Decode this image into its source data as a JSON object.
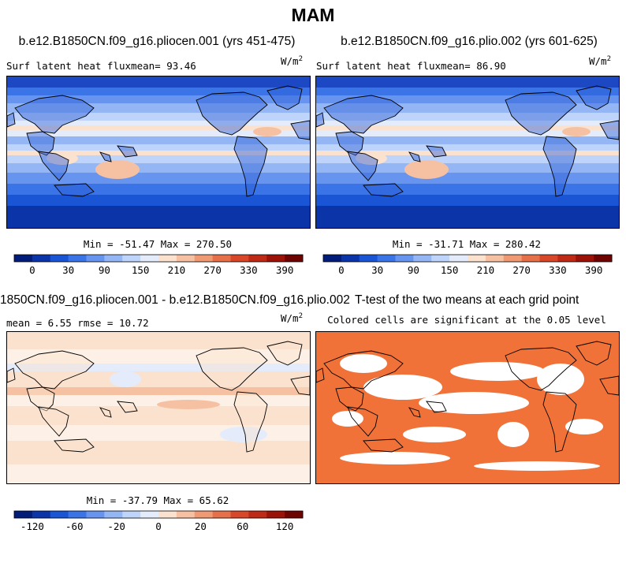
{
  "main_title": "MAM",
  "units_base": "W/m",
  "units_exp": "2",
  "panels": {
    "p1": {
      "title": "b.e12.B1850CN.f09_g16.pliocen.001 (yrs 451-475)",
      "left_text": "Surf latent heat fluxmean=  93.46",
      "minmax": "Min = -51.47 Max = 270.50"
    },
    "p2": {
      "title": "b.e12.B1850CN.f09_g16.plio.002 (yrs 601-625)",
      "left_text": "Surf latent heat fluxmean=  86.90",
      "minmax": "Min = -31.71 Max = 280.42"
    },
    "p3": {
      "title": "1850CN.f09_g16.pliocen.001 - b.e12.B1850CN.f09_g16.plio.002",
      "left_text": "mean =   6.55    rmse =  10.72",
      "minmax": "Min = -37.79 Max = 65.62"
    },
    "p4": {
      "title": "T-test of the two means at each grid point",
      "subtitle": "Colored cells are significant at the 0.05 level"
    }
  },
  "chart_data": [
    {
      "type": "heatmap",
      "name": "model-1-latent-heat",
      "title": "b.e12.B1850CN.f09_g16.pliocen.001 (yrs 451-475)",
      "variable": "Surf latent heat flux",
      "units": "W/m2",
      "mean": 93.46,
      "min": -51.47,
      "max": 270.5,
      "colorbar_ticks": [
        "0",
        "30",
        "90",
        "150",
        "210",
        "270",
        "330",
        "390"
      ],
      "colorbar_colors": [
        "#021c7a",
        "#0b34a8",
        "#1a55d6",
        "#3a74e6",
        "#6794ef",
        "#95b6f4",
        "#bfd4fa",
        "#e4ecfc",
        "#fbe2cf",
        "#f6c1a2",
        "#ef9a73",
        "#e5704a",
        "#d9472a",
        "#bf2a16",
        "#9b1209",
        "#6e0402"
      ]
    },
    {
      "type": "heatmap",
      "name": "model-2-latent-heat",
      "title": "b.e12.B1850CN.f09_g16.plio.002 (yrs 601-625)",
      "variable": "Surf latent heat flux",
      "units": "W/m2",
      "mean": 86.9,
      "min": -31.71,
      "max": 280.42,
      "colorbar_ticks": [
        "0",
        "30",
        "90",
        "150",
        "210",
        "270",
        "330",
        "390"
      ],
      "colorbar_colors": [
        "#021c7a",
        "#0b34a8",
        "#1a55d6",
        "#3a74e6",
        "#6794ef",
        "#95b6f4",
        "#bfd4fa",
        "#e4ecfc",
        "#fbe2cf",
        "#f6c1a2",
        "#ef9a73",
        "#e5704a",
        "#d9472a",
        "#bf2a16",
        "#9b1209",
        "#6e0402"
      ]
    },
    {
      "type": "heatmap",
      "name": "difference",
      "title": "1850CN.f09_g16.pliocen.001 - b.e12.B1850CN.f09_g16.plio.002",
      "units": "W/m2",
      "mean": 6.55,
      "rmse": 10.72,
      "min": -37.79,
      "max": 65.62,
      "colorbar_ticks": [
        "-120",
        "-60",
        "-20",
        "0",
        "20",
        "60",
        "120"
      ],
      "colorbar_colors": [
        "#021c7a",
        "#0b34a8",
        "#1a55d6",
        "#3a74e6",
        "#6794ef",
        "#95b6f4",
        "#bfd4fa",
        "#e4ecfc",
        "#fbe2cf",
        "#f6c1a2",
        "#ef9a73",
        "#e5704a",
        "#d9472a",
        "#bf2a16",
        "#9b1209",
        "#6e0402"
      ]
    },
    {
      "type": "heatmap",
      "name": "t-test-significance",
      "title": "T-test of the two means at each grid point",
      "subtitle": "Colored cells are significant at the 0.05 level",
      "significant_color": "#f07238",
      "insignificant_color": "#ffffff"
    }
  ]
}
